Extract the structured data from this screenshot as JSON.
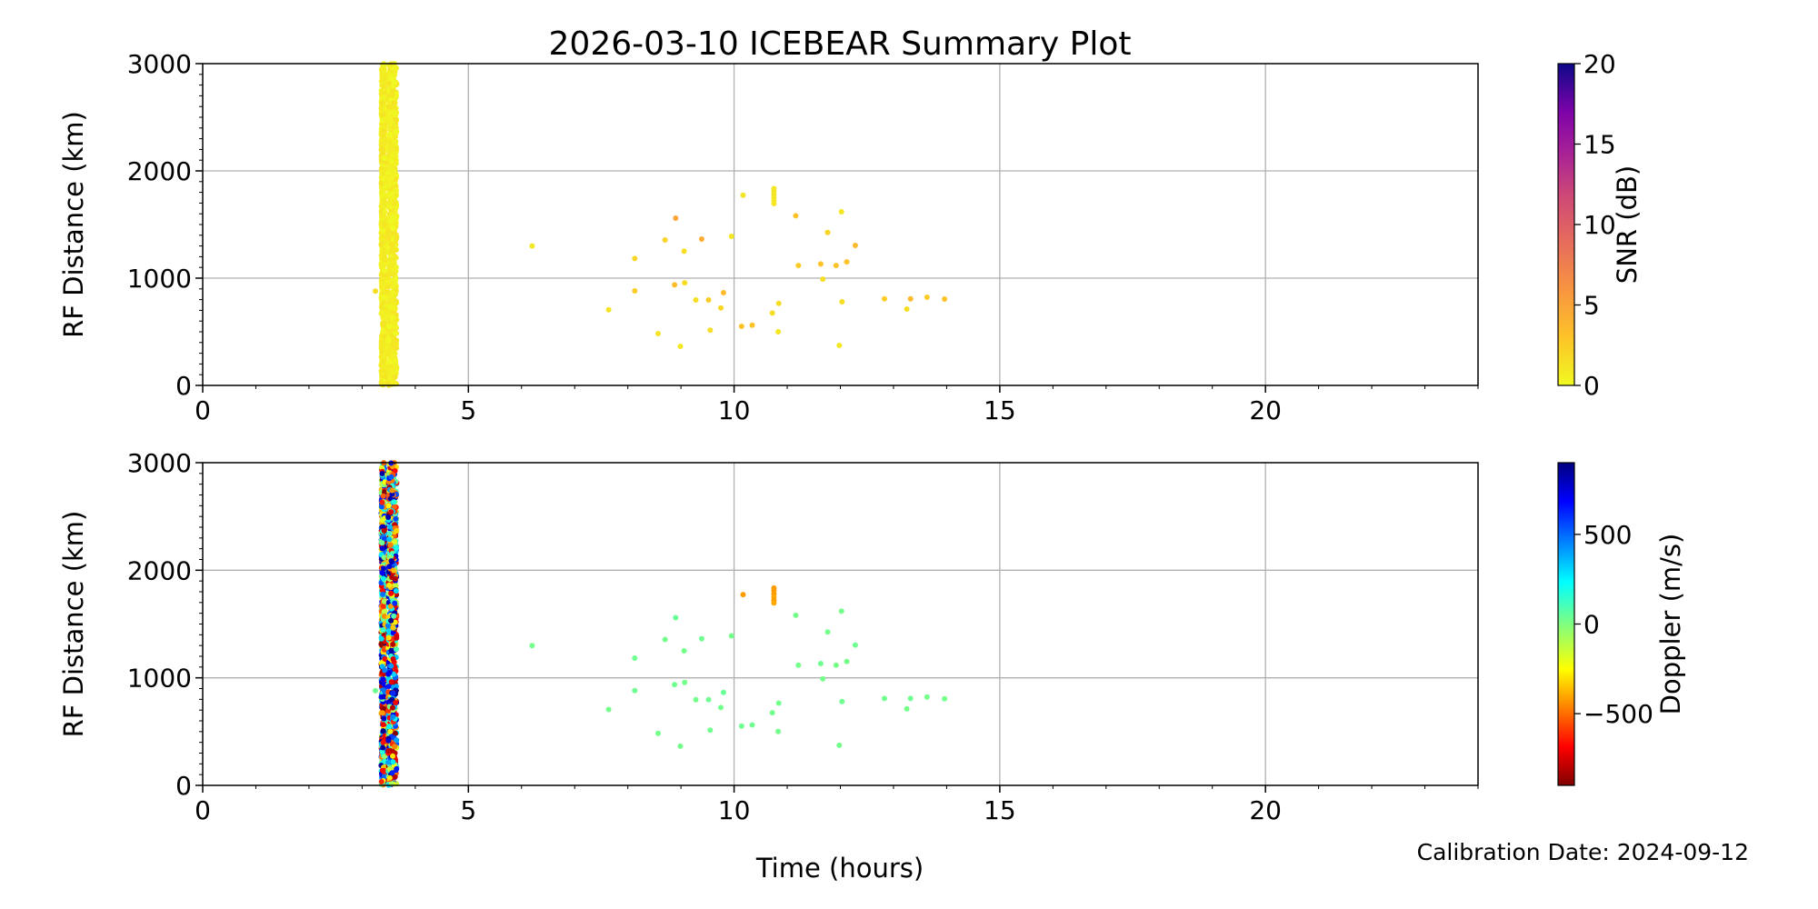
{
  "title": "2026-03-10 ICEBEAR Summary Plot",
  "footer": "Calibration Date: 2024-09-12",
  "chart_data": [
    {
      "type": "scatter",
      "xlabel": "Time (hours)",
      "ylabel": "RF Distance (km)",
      "xlim": [
        0,
        24
      ],
      "ylim": [
        0,
        3000
      ],
      "xticks": [
        "0",
        "5",
        "10",
        "15",
        "20"
      ],
      "yticks": [
        "0",
        "1000",
        "2000",
        "3000"
      ],
      "grid": true,
      "color_by": "snr",
      "colorbar": {
        "label": "SNR (dB)",
        "range": [
          0,
          20
        ],
        "ticks": [
          "0",
          "5",
          "10",
          "15",
          "20"
        ],
        "colormap": "plasma_r"
      }
    },
    {
      "type": "scatter",
      "xlabel": "Time (hours)",
      "ylabel": "RF Distance (km)",
      "xlim": [
        0,
        24
      ],
      "ylim": [
        0,
        3000
      ],
      "xticks": [
        "0",
        "5",
        "10",
        "15",
        "20"
      ],
      "yticks": [
        "0",
        "1000",
        "2000",
        "3000"
      ],
      "grid": true,
      "color_by": "doppler",
      "colorbar": {
        "label": "Doppler (m/s)",
        "range": [
          -900,
          900
        ],
        "ticks": [
          "−500",
          "0",
          "500"
        ],
        "tick_values": [
          -500,
          0,
          500
        ],
        "colormap": "jet_r"
      }
    }
  ],
  "points_columns": [
    "time_hours",
    "rf_distance_km",
    "snr_db",
    "doppler_ms"
  ],
  "points": [
    [
      3.25,
      880,
      1.5,
      30
    ],
    [
      6.2,
      1300,
      1.0,
      20
    ],
    [
      7.64,
      706,
      1.2,
      20
    ],
    [
      8.13,
      1183,
      2.0,
      30
    ],
    [
      8.13,
      881,
      2.5,
      30
    ],
    [
      8.57,
      483,
      1.2,
      20
    ],
    [
      8.7,
      1356,
      2.0,
      20
    ],
    [
      8.9,
      1559,
      5.0,
      40
    ],
    [
      8.88,
      937,
      3.5,
      30
    ],
    [
      8.99,
      364,
      1.0,
      20
    ],
    [
      9.06,
      1251,
      1.5,
      20
    ],
    [
      9.07,
      957,
      1.5,
      20
    ],
    [
      9.28,
      797,
      1.5,
      20
    ],
    [
      9.39,
      1364,
      4.5,
      30
    ],
    [
      9.52,
      797,
      2.5,
      30
    ],
    [
      9.55,
      514,
      1.5,
      30
    ],
    [
      9.75,
      723,
      2.0,
      20
    ],
    [
      9.8,
      864,
      3.5,
      40
    ],
    [
      9.95,
      1390,
      1.0,
      20
    ],
    [
      10.14,
      551,
      3.0,
      30
    ],
    [
      10.17,
      1774,
      1.2,
      -420
    ],
    [
      10.34,
      562,
      3.0,
      30
    ],
    [
      10.72,
      675,
      1.5,
      20
    ],
    [
      10.75,
      1835,
      1.0,
      -420
    ],
    [
      10.75,
      1810,
      1.0,
      -420
    ],
    [
      10.75,
      1780,
      1.2,
      -420
    ],
    [
      10.75,
      1750,
      1.0,
      -400
    ],
    [
      10.75,
      1720,
      1.0,
      -420
    ],
    [
      10.75,
      1695,
      1.0,
      -400
    ],
    [
      10.83,
      500,
      1.0,
      20
    ],
    [
      10.84,
      765,
      1.5,
      20
    ],
    [
      11.16,
      1581,
      3.0,
      20
    ],
    [
      11.21,
      1118,
      2.5,
      20
    ],
    [
      11.63,
      1132,
      3.0,
      30
    ],
    [
      11.67,
      991,
      1.5,
      20
    ],
    [
      11.76,
      1426,
      2.0,
      20
    ],
    [
      11.92,
      1118,
      3.0,
      20
    ],
    [
      11.98,
      373,
      1.0,
      20
    ],
    [
      12.02,
      1619,
      1.0,
      20
    ],
    [
      12.03,
      780,
      1.5,
      30
    ],
    [
      12.12,
      1152,
      3.0,
      20
    ],
    [
      12.28,
      1305,
      3.5,
      30
    ],
    [
      12.83,
      808,
      2.5,
      30
    ],
    [
      13.25,
      712,
      1.5,
      20
    ],
    [
      13.32,
      808,
      3.5,
      30
    ],
    [
      13.63,
      822,
      2.5,
      20
    ],
    [
      13.96,
      805,
      3.0,
      20
    ]
  ],
  "dense_bands": [
    {
      "time_range": [
        3.36,
        3.43
      ],
      "rf_distance_range": [
        0,
        3000
      ],
      "snr_range": [
        0,
        1.2
      ],
      "doppler_range": [
        -900,
        900
      ]
    },
    {
      "time_range": [
        3.49,
        3.65
      ],
      "rf_distance_range": [
        0,
        3000
      ],
      "snr_range": [
        0,
        1.2
      ],
      "doppler_range": [
        -900,
        900
      ]
    }
  ]
}
